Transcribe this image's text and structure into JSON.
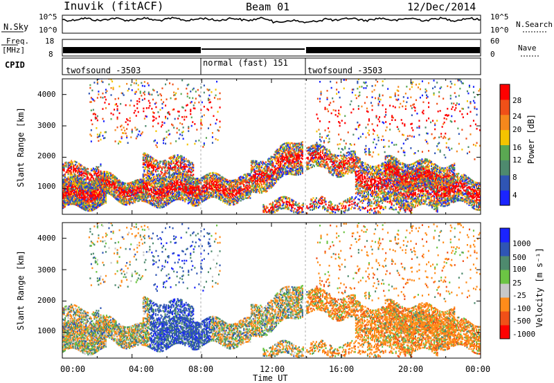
{
  "header": {
    "station": "Inuvik (fitACF)",
    "beam": "Beam 01",
    "date": "12/Dec/2014"
  },
  "colors": {
    "power_scale": [
      "#1a24ff",
      "#2f55b4",
      "#4e8a6e",
      "#5aa852",
      "#f4c400",
      "#f6881c",
      "#f05018",
      "#ff0000"
    ],
    "velocity_scale": [
      "#ff0000",
      "#f05018",
      "#ff8c1a",
      "#c8c8c8",
      "#6cc444",
      "#4e8a6e",
      "#2f55b4",
      "#1a24ff"
    ]
  },
  "chart_data": [
    {
      "type": "line",
      "panel": "nsky-nsearch",
      "left_label": "N.Sky",
      "right_label": "N.Search",
      "left_ticks": [
        "10^5",
        "10^0"
      ],
      "right_ticks": [
        "10^5",
        "10^0"
      ],
      "log_scale": true
    },
    {
      "type": "line",
      "panel": "freq-nave",
      "left_label": "Freq.",
      "left_unit": "[MHz]",
      "left_ticks": [
        "18",
        "8"
      ],
      "right_label": "Nave",
      "right_ticks": [
        "60",
        "0"
      ],
      "segments": [
        {
          "from": 0,
          "to": 8,
          "mode": "dual"
        },
        {
          "from": 8,
          "to": 14,
          "mode": "single"
        },
        {
          "from": 14,
          "to": 24,
          "mode": "dual"
        }
      ]
    },
    {
      "type": "table",
      "panel": "cpid",
      "label": "CPID",
      "programs": [
        {
          "from": 0,
          "to": 8,
          "name": "twofsound -3503"
        },
        {
          "from": 8,
          "to": 14,
          "name": "normal (fast) 151"
        },
        {
          "from": 14,
          "to": 24,
          "name": "twofsound -3503"
        }
      ]
    },
    {
      "type": "heatmap",
      "panel": "power",
      "ylabel": "Slant Range [km]",
      "yticks": [
        1000,
        2000,
        3000,
        4000
      ],
      "ylim": [
        180,
        4500
      ],
      "xlim": [
        0,
        24
      ],
      "colorbar_label": "Power [dB]",
      "colorbar_ticks": [
        "4",
        "8",
        "12",
        "16",
        "20",
        "24",
        "28"
      ]
    },
    {
      "type": "heatmap",
      "panel": "velocity",
      "ylabel": "Slant Range [km]",
      "xlabel": "Time UT",
      "yticks": [
        1000,
        2000,
        3000,
        4000
      ],
      "ylim": [
        180,
        4500
      ],
      "xlim": [
        0,
        24
      ],
      "xticks": [
        "00:00",
        "04:00",
        "08:00",
        "12:00",
        "16:00",
        "20:00",
        "00:00"
      ],
      "colorbar_label": "Velocity [m s⁻¹]",
      "colorbar_ticks": [
        "1000",
        "500",
        "100",
        "25",
        "-25",
        "-100",
        "-500",
        "-1000"
      ]
    }
  ]
}
